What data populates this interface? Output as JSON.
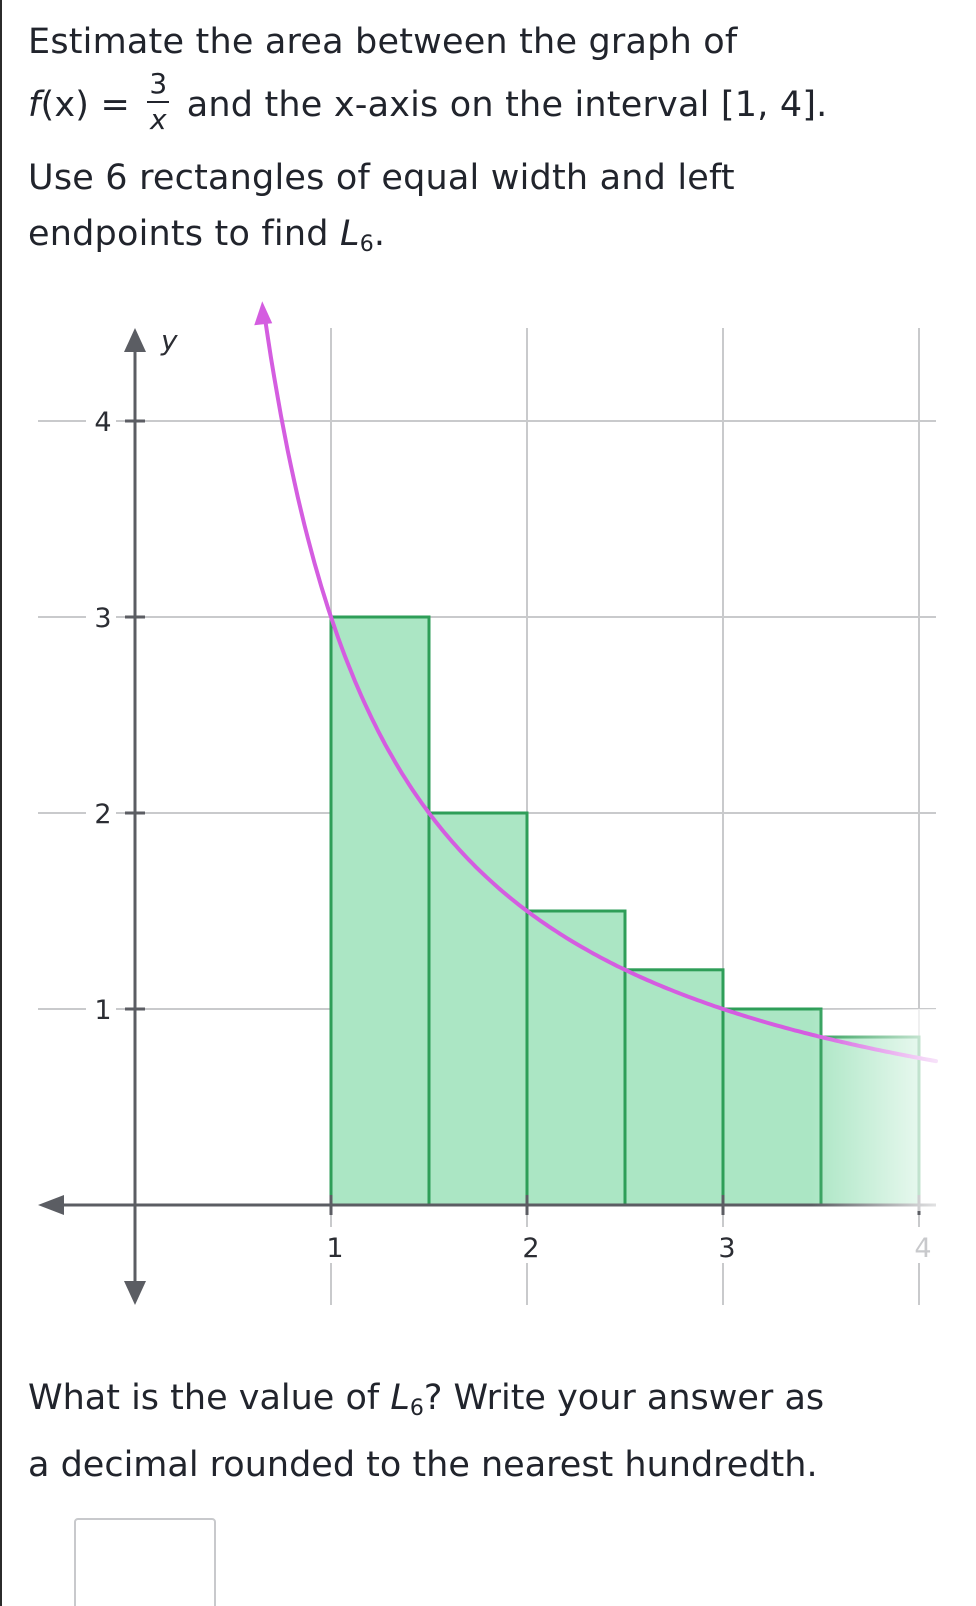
{
  "prompt": {
    "line1": "Estimate the area between the graph of",
    "func_lhs": "f",
    "func_arg": "(x) =",
    "frac_num": "3",
    "frac_den": "x",
    "line2_rest": "and the x-axis on the interval",
    "interval": "[1, 4].",
    "line3": "Use 6 rectangles of equal width and left",
    "line4_pre": "endpoints to find",
    "sum_symbol": "L",
    "sum_sub": "6",
    "line4_post": "."
  },
  "question": {
    "line1_pre": "What is the value of",
    "sum_symbol": "L",
    "sum_sub": "6",
    "line1_post": "? Write your answer as",
    "line2": "a decimal rounded to the nearest hundredth."
  },
  "answer": {
    "value": "",
    "placeholder": ""
  },
  "colors": {
    "curve": "#d45de0",
    "rect_fill": "#abe6c4",
    "rect_stroke": "#2e9e58",
    "grid": "#c9cacc",
    "axis": "#5b5d63"
  },
  "chart_data": {
    "type": "area",
    "title": "",
    "function": "3/x",
    "ylabel": "y",
    "xlabel": "",
    "x_ticks": [
      "1",
      "2",
      "3",
      "4"
    ],
    "y_ticks": [
      "4",
      "3",
      "2",
      "1"
    ],
    "xlim": [
      -0.4,
      4.1
    ],
    "ylim": [
      -0.85,
      4.5
    ],
    "rectangles": {
      "x": [
        1.0,
        1.5,
        2.0,
        2.5,
        3.0,
        3.5
      ],
      "width": 0.5,
      "heights": [
        3.0,
        2.0,
        1.5,
        1.2,
        1.0,
        0.857
      ]
    },
    "grid": true
  }
}
